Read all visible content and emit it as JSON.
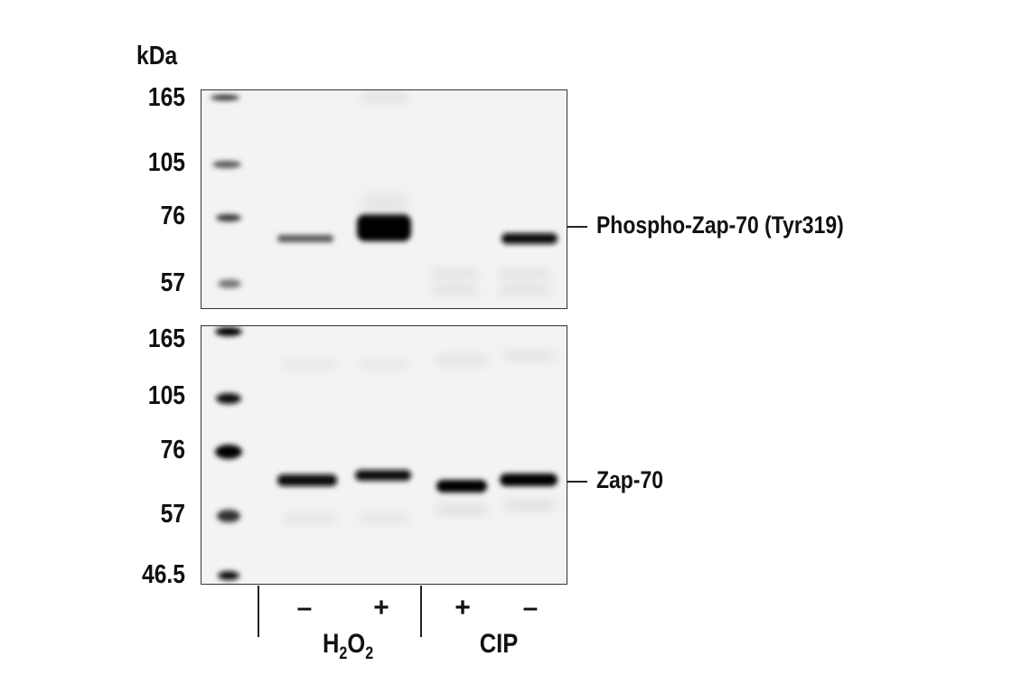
{
  "figure": {
    "unit_label": "kDa",
    "top_panel": {
      "markers": [
        "165",
        "105",
        "76",
        "57"
      ],
      "target_label": "Phospho-Zap-70 (Tyr319)"
    },
    "bottom_panel": {
      "markers": [
        "165",
        "105",
        "76",
        "57",
        "46.5"
      ],
      "target_label": "Zap-70"
    },
    "lane_signs": [
      "–",
      "+",
      "+",
      "–"
    ],
    "groups": [
      {
        "name_main": "H",
        "sub1": "2",
        "mid": "O",
        "sub2": "2"
      },
      {
        "name": "CIP"
      }
    ]
  }
}
